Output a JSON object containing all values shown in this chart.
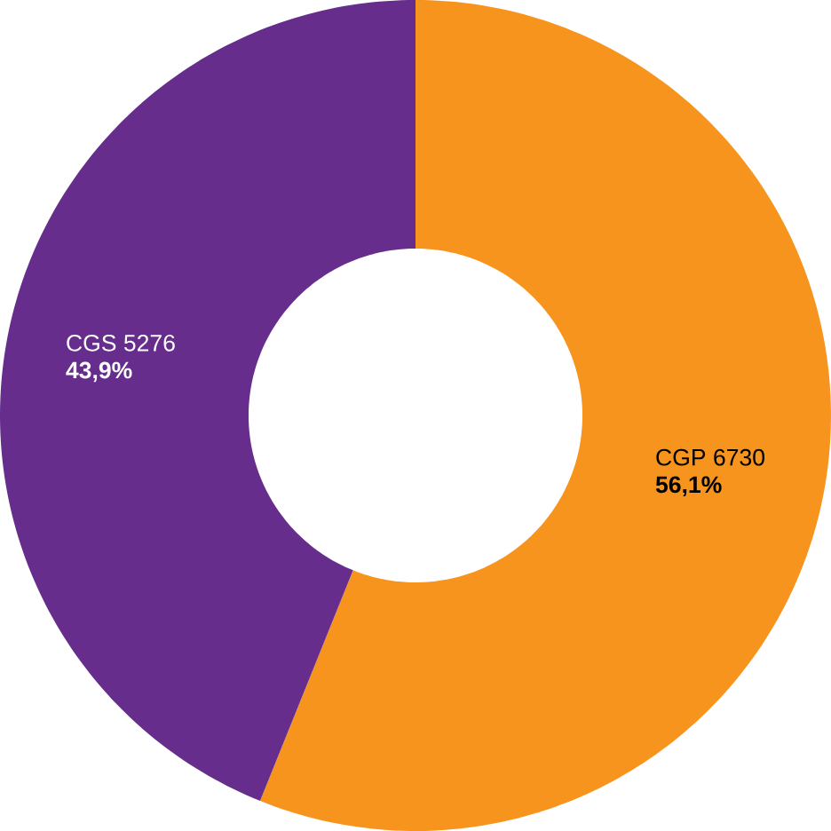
{
  "chart_data": {
    "type": "donut",
    "categories": [
      "CGP 6730",
      "CGS 5276"
    ],
    "values": [
      56.1,
      43.9
    ],
    "value_labels": [
      "56,1%",
      "43,9%"
    ],
    "colors": [
      "#f7941d",
      "#662d8c"
    ]
  }
}
